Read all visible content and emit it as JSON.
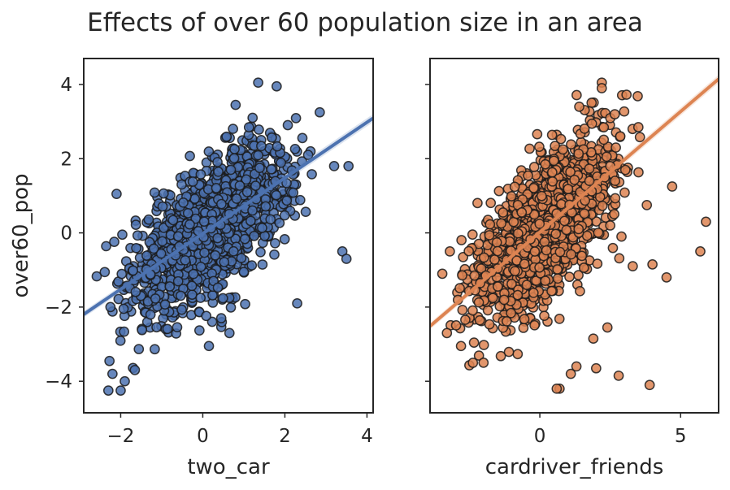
{
  "figure": {
    "title": "Effects of over 60 population size in an area"
  },
  "chart_data": [
    {
      "type": "scatter",
      "title": "",
      "xlabel": "two_car",
      "ylabel": "over60_pop",
      "xlim": [
        -2.9,
        4.15
      ],
      "ylim": [
        -4.85,
        4.7
      ],
      "xticks": [
        -2,
        0,
        2,
        4
      ],
      "xtick_labels": [
        "−2",
        "0",
        "2",
        "4"
      ],
      "yticks": [
        -4,
        -2,
        0,
        2,
        4
      ],
      "ytick_labels": [
        "−4",
        "−2",
        "0",
        "2",
        "4"
      ],
      "grid": false,
      "point_color": "#4c72b0",
      "edge_color": "#1a1a1a",
      "regression": {
        "slope": 0.75,
        "intercept": -0.02
      },
      "cloud": {
        "n": 1500,
        "x_mean": 0.2,
        "x_sd": 0.95,
        "slope": 0.75,
        "intercept": -0.02,
        "resid_sd": 0.85,
        "x_range": [
          -2.6,
          3.3
        ],
        "y_range": [
          -4.3,
          3.5
        ]
      },
      "points": [
        {
          "x": 1.35,
          "y": 4.05
        },
        {
          "x": 1.8,
          "y": 3.95
        },
        {
          "x": 0.8,
          "y": 3.45
        },
        {
          "x": 2.85,
          "y": 3.25
        },
        {
          "x": 3.55,
          "y": 1.8
        },
        {
          "x": 3.2,
          "y": 1.8
        },
        {
          "x": 3.4,
          "y": -0.5
        },
        {
          "x": 3.5,
          "y": -0.7
        },
        {
          "x": -2.1,
          "y": 1.05
        },
        {
          "x": -2.3,
          "y": -4.25
        },
        {
          "x": -2.0,
          "y": -4.25
        },
        {
          "x": 0.15,
          "y": -3.05
        },
        {
          "x": 0.65,
          "y": -2.7
        },
        {
          "x": 0.45,
          "y": -2.3
        },
        {
          "x": 2.3,
          "y": -1.9
        },
        {
          "x": -2.2,
          "y": -3.8
        },
        {
          "x": -1.9,
          "y": -4.0
        }
      ]
    },
    {
      "type": "scatter",
      "title": "",
      "xlabel": "cardriver_friends",
      "ylabel": "",
      "xlim": [
        -3.9,
        6.35
      ],
      "ylim": [
        -4.85,
        4.7
      ],
      "xticks": [
        0,
        5
      ],
      "xtick_labels": [
        "0",
        "5"
      ],
      "yticks": [
        -4,
        -2,
        0,
        2,
        4
      ],
      "ytick_labels": [
        "",
        "",
        "",
        "",
        ""
      ],
      "grid": false,
      "point_color": "#dd8452",
      "edge_color": "#1a1a1a",
      "regression": {
        "slope": 0.65,
        "intercept": 0.02
      },
      "cloud": {
        "n": 1500,
        "x_mean": 0.2,
        "x_sd": 1.2,
        "slope": 0.65,
        "intercept": 0.02,
        "resid_sd": 0.9,
        "x_range": [
          -3.6,
          3.6
        ],
        "y_range": [
          -4.3,
          4.0
        ]
      },
      "points": [
        {
          "x": 2.2,
          "y": 4.05
        },
        {
          "x": 2.2,
          "y": 3.9
        },
        {
          "x": 1.4,
          "y": 3.4
        },
        {
          "x": 5.9,
          "y": 0.3
        },
        {
          "x": 5.7,
          "y": -0.5
        },
        {
          "x": 4.7,
          "y": 1.25
        },
        {
          "x": 3.8,
          "y": 0.75
        },
        {
          "x": 0.7,
          "y": -4.2
        },
        {
          "x": 0.6,
          "y": -4.2
        },
        {
          "x": 3.9,
          "y": -4.1
        },
        {
          "x": 2.8,
          "y": -3.85
        },
        {
          "x": 1.1,
          "y": -3.8
        },
        {
          "x": 1.3,
          "y": -3.6
        },
        {
          "x": 2.0,
          "y": -3.65
        },
        {
          "x": -2.8,
          "y": -3.05
        },
        {
          "x": -3.3,
          "y": -2.7
        },
        {
          "x": -2.0,
          "y": -3.5
        },
        {
          "x": 1.9,
          "y": -2.85
        },
        {
          "x": 2.4,
          "y": -2.55
        },
        {
          "x": 4.5,
          "y": -1.2
        },
        {
          "x": 4.0,
          "y": -0.85
        },
        {
          "x": 3.3,
          "y": -0.9
        },
        {
          "x": 2.5,
          "y": 0.2
        },
        {
          "x": 2.9,
          "y": -0.1
        },
        {
          "x": 3.5,
          "y": 2.85
        },
        {
          "x": 2.7,
          "y": 2.3
        },
        {
          "x": 2.5,
          "y": 1.8
        }
      ]
    }
  ]
}
